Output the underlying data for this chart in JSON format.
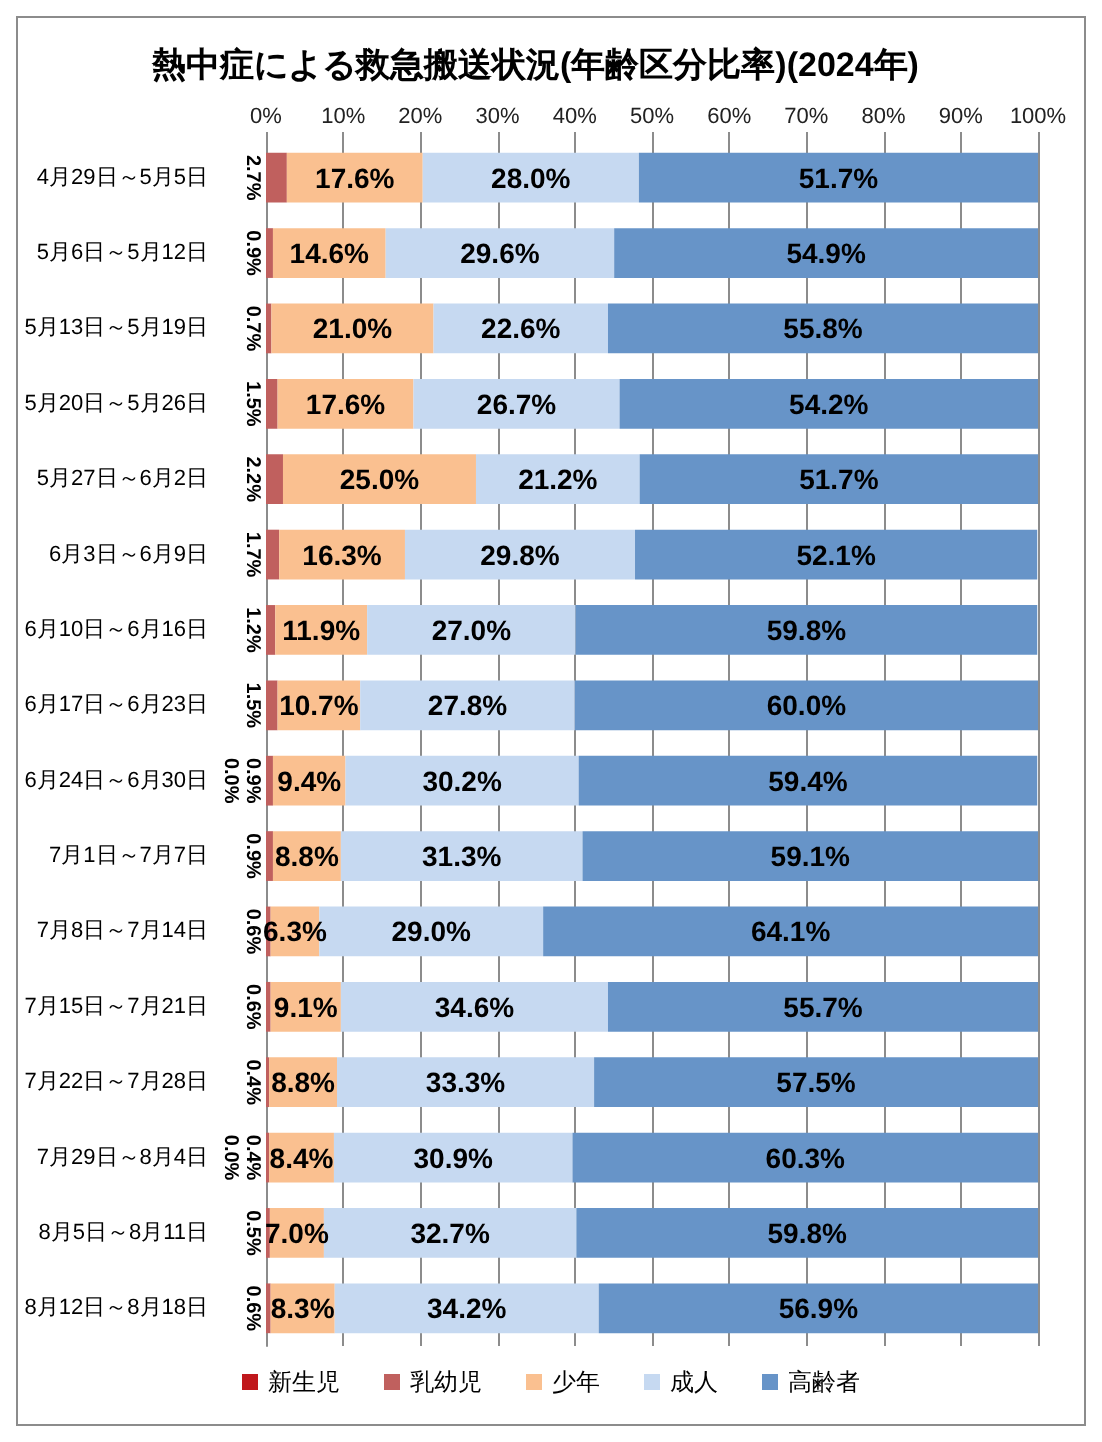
{
  "chart_data": {
    "type": "bar",
    "orientation": "horizontal",
    "stacked": true,
    "title": "熱中症による救急搬送状況(年齢区分比率)(2024年)",
    "categories": [
      "4月29日～5月5日",
      "5月6日～5月12日",
      "5月13日～5月19日",
      "5月20日～5月26日",
      "5月27日～6月2日",
      "6月3日～6月9日",
      "6月10日～6月16日",
      "6月17日～6月23日",
      "6月24日～6月30日",
      "7月1日～7月7日",
      "7月8日～7月14日",
      "7月15日～7月21日",
      "7月22日～7月28日",
      "7月29日～8月4日",
      "8月5日～8月11日",
      "8月12日～8月18日"
    ],
    "series": [
      {
        "name": "新生児",
        "color": "#c0181c",
        "values": [
          0,
          0,
          0,
          0,
          0,
          0,
          0,
          0,
          0.0,
          0,
          0,
          0,
          0,
          0.0,
          0,
          0
        ],
        "value_labels": [
          null,
          null,
          null,
          null,
          null,
          null,
          null,
          null,
          "0.0%",
          null,
          null,
          null,
          null,
          "0.0%",
          null,
          null
        ]
      },
      {
        "name": "乳幼児",
        "color": "#c0605e",
        "values": [
          2.7,
          0.9,
          0.7,
          1.5,
          2.2,
          1.7,
          1.2,
          1.5,
          0.9,
          0.9,
          0.6,
          0.6,
          0.4,
          0.4,
          0.5,
          0.6
        ],
        "value_labels": [
          "2.7%",
          "0.9%",
          "0.7%",
          "1.5%",
          "2.2%",
          "1.7%",
          "1.2%",
          "1.5%",
          "0.9%",
          "0.9%",
          "0.6%",
          "0.6%",
          "0.4%",
          "0.4%",
          "0.5%",
          "0.6%"
        ]
      },
      {
        "name": "少年",
        "color": "#fac090",
        "values": [
          17.6,
          14.6,
          21.0,
          17.6,
          25.0,
          16.3,
          11.9,
          10.7,
          9.4,
          8.8,
          6.3,
          9.1,
          8.8,
          8.4,
          7.0,
          8.3
        ],
        "value_labels": [
          "17.6%",
          "14.6%",
          "21.0%",
          "17.6%",
          "25.0%",
          "16.3%",
          "11.9%",
          "10.7%",
          "9.4%",
          "8.8%",
          "6.3%",
          "9.1%",
          "8.8%",
          "8.4%",
          "7.0%",
          "8.3%"
        ]
      },
      {
        "name": "成人",
        "color": "#c6d9f1",
        "values": [
          28.0,
          29.6,
          22.6,
          26.7,
          21.2,
          29.8,
          27.0,
          27.8,
          30.2,
          31.3,
          29.0,
          34.6,
          33.3,
          30.9,
          32.7,
          34.2
        ],
        "value_labels": [
          "28.0%",
          "29.6%",
          "22.6%",
          "26.7%",
          "21.2%",
          "29.8%",
          "27.0%",
          "27.8%",
          "30.2%",
          "31.3%",
          "29.0%",
          "34.6%",
          "33.3%",
          "30.9%",
          "32.7%",
          "34.2%"
        ]
      },
      {
        "name": "高齢者",
        "color": "#6794c8",
        "values": [
          51.7,
          54.9,
          55.8,
          54.2,
          51.7,
          52.1,
          59.8,
          60.0,
          59.4,
          59.1,
          64.1,
          55.7,
          57.5,
          60.3,
          59.8,
          56.9
        ],
        "value_labels": [
          "51.7%",
          "54.9%",
          "55.8%",
          "54.2%",
          "51.7%",
          "52.1%",
          "59.8%",
          "60.0%",
          "59.4%",
          "59.1%",
          "64.1%",
          "55.7%",
          "57.5%",
          "60.3%",
          "59.8%",
          "56.9%"
        ]
      }
    ],
    "xlim": [
      0,
      100
    ],
    "xticks": [
      {
        "value": 0,
        "label": "0%"
      },
      {
        "value": 10,
        "label": "10%"
      },
      {
        "value": 20,
        "label": "20%"
      },
      {
        "value": 30,
        "label": "30%"
      },
      {
        "value": 40,
        "label": "40%"
      },
      {
        "value": 50,
        "label": "50%"
      },
      {
        "value": 60,
        "label": "60%"
      },
      {
        "value": 70,
        "label": "70%"
      },
      {
        "value": 80,
        "label": "80%"
      },
      {
        "value": 90,
        "label": "90%"
      },
      {
        "value": 100,
        "label": "100%"
      }
    ],
    "grid": "x",
    "legend": "bottom"
  }
}
